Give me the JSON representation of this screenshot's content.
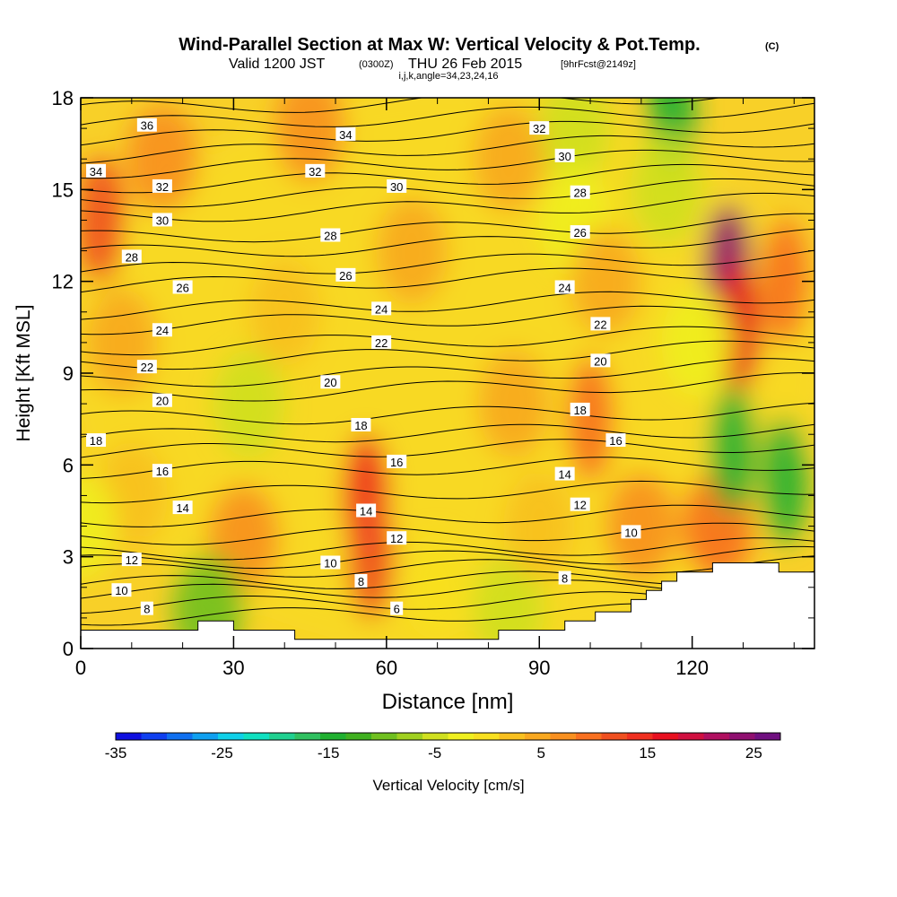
{
  "header": {
    "title": "Wind-Parallel Section at Max W: Vertical Velocity & Pot.Temp.",
    "copyright": "(C)",
    "valid_prefix": "Valid 1200 JST",
    "valid_utc": "(0300Z)",
    "valid_date": "THU 26 Feb 2015",
    "forecast": "[9hrFcst@2149z]",
    "params": "i,j,k,angle=34,23,24,16"
  },
  "chart_data": {
    "type": "heatmap",
    "title": "Wind-Parallel Section at Max W: Vertical Velocity & Pot.Temp.",
    "xlabel": "Distance [nm]",
    "ylabel": "Height [Kft MSL]",
    "xlim": [
      0,
      144
    ],
    "ylim": [
      0,
      18
    ],
    "x_ticks": [
      0,
      30,
      60,
      90,
      120
    ],
    "y_ticks": [
      0,
      3,
      6,
      9,
      12,
      15,
      18
    ],
    "colorbar": {
      "label": "Vertical Velocity [cm/s]",
      "min": -35,
      "max": 27.5,
      "step": 2.5,
      "tick_values": [
        -35,
        -25,
        -15,
        -5,
        5,
        15,
        25
      ],
      "colors": [
        "#1010e0",
        "#1040f0",
        "#1070f0",
        "#10a0f0",
        "#10d0e8",
        "#10e0c0",
        "#20d090",
        "#30c060",
        "#20b030",
        "#40b020",
        "#70c020",
        "#a0d020",
        "#d0e020",
        "#f0f020",
        "#f8e020",
        "#f8c020",
        "#f8a820",
        "#f89020",
        "#f87020",
        "#f05020",
        "#f03020",
        "#e81020",
        "#d01040",
        "#b01060",
        "#901070",
        "#701080"
      ]
    },
    "velocity_cells": [
      {
        "x": 72,
        "y": 9,
        "w": 0
      },
      {
        "x": 4,
        "y": 14,
        "w": 14
      },
      {
        "x": 8,
        "y": 10,
        "w": 7
      },
      {
        "x": 16,
        "y": 16,
        "w": 9
      },
      {
        "x": 45,
        "y": 17,
        "w": 8
      },
      {
        "x": 65,
        "y": 13,
        "w": 7
      },
      {
        "x": 56,
        "y": 5,
        "w": 15
      },
      {
        "x": 57,
        "y": 3,
        "w": 14
      },
      {
        "x": 32,
        "y": 3.6,
        "w": 8
      },
      {
        "x": 100,
        "y": 7.5,
        "w": 11
      },
      {
        "x": 85,
        "y": 8,
        "w": 6
      },
      {
        "x": 127,
        "y": 12.5,
        "w": 25
      },
      {
        "x": 129,
        "y": 10.5,
        "w": 18
      },
      {
        "x": 138,
        "y": 12,
        "w": 12
      },
      {
        "x": 125,
        "y": 4,
        "w": 10
      },
      {
        "x": 110,
        "y": 4,
        "w": 9
      },
      {
        "x": 97,
        "y": 17,
        "w": -4
      },
      {
        "x": 97,
        "y": 14,
        "w": -2
      },
      {
        "x": 116,
        "y": 17.5,
        "w": -14
      },
      {
        "x": 115,
        "y": 15,
        "w": -5
      },
      {
        "x": 128,
        "y": 6.5,
        "w": -15
      },
      {
        "x": 138,
        "y": 5.5,
        "w": -14
      },
      {
        "x": 121,
        "y": 10,
        "w": -2
      },
      {
        "x": 33,
        "y": 8,
        "w": -3
      },
      {
        "x": 25,
        "y": 1.3,
        "w": -8
      },
      {
        "x": 84,
        "y": 1.3,
        "w": -3
      },
      {
        "x": 70,
        "y": 2,
        "w": 2
      },
      {
        "x": 90,
        "y": 4,
        "w": 3
      },
      {
        "x": 10,
        "y": 5,
        "w": 4
      },
      {
        "x": 40,
        "y": 11,
        "w": 4
      },
      {
        "x": 103,
        "y": 12,
        "w": 7
      },
      {
        "x": 84,
        "y": 16,
        "w": 6
      },
      {
        "x": 0,
        "y": 4,
        "w": -2
      }
    ],
    "isentropes": [
      {
        "value": 6,
        "y": 1.0,
        "label_x": 62
      },
      {
        "value": 7,
        "y": 1.4,
        "label_x": 0
      },
      {
        "value": 8,
        "y": 1.8,
        "label_x": 13
      },
      {
        "value": 9,
        "y": 2.1,
        "label_x": 0
      },
      {
        "value": 10,
        "y": 2.5,
        "label_x": 8
      },
      {
        "value": 11,
        "y": 2.8,
        "label_x": 0
      },
      {
        "value": 12,
        "y": 3.1,
        "label_x": 10
      },
      {
        "value": 13,
        "y": 3.6,
        "label_x": 0
      },
      {
        "value": 14,
        "y": 4.2,
        "label_x": 20
      },
      {
        "value": 15,
        "y": 5.0,
        "label_x": 0
      },
      {
        "value": 16,
        "y": 5.8,
        "label_x": 16
      },
      {
        "value": 17,
        "y": 6.4,
        "label_x": 0
      },
      {
        "value": 18,
        "y": 6.9,
        "label_x": 3
      },
      {
        "value": 19,
        "y": 7.5,
        "label_x": 0
      },
      {
        "value": 20,
        "y": 8.2,
        "label_x": 16
      },
      {
        "value": 21,
        "y": 8.7,
        "label_x": 0
      },
      {
        "value": 22,
        "y": 9.3,
        "label_x": 13
      },
      {
        "value": 23,
        "y": 9.8,
        "label_x": 0
      },
      {
        "value": 24,
        "y": 10.5,
        "label_x": 16
      },
      {
        "value": 25,
        "y": 11.0,
        "label_x": 0
      },
      {
        "value": 26,
        "y": 11.8,
        "label_x": 19
      },
      {
        "value": 27,
        "y": 12.3,
        "label_x": 0
      },
      {
        "value": 28,
        "y": 12.9,
        "label_x": 9
      },
      {
        "value": 29,
        "y": 13.4,
        "label_x": 0
      },
      {
        "value": 30,
        "y": 14.1,
        "label_x": 16
      },
      {
        "value": 31,
        "y": 14.6,
        "label_x": 0
      },
      {
        "value": 32,
        "y": 15.1,
        "label_x": 16
      },
      {
        "value": 33,
        "y": 15.6,
        "label_x": 0
      },
      {
        "value": 34,
        "y": 16.1,
        "label_x": 0
      },
      {
        "value": 35,
        "y": 16.6,
        "label_x": 0
      },
      {
        "value": 36,
        "y": 17.1,
        "label_x": 13
      },
      {
        "value": 37,
        "y": 17.6,
        "label_x": 0
      }
    ],
    "contour_labels": [
      {
        "text": "36",
        "x": 13,
        "y": 17.1
      },
      {
        "text": "34",
        "x": 3,
        "y": 15.6
      },
      {
        "text": "34",
        "x": 52,
        "y": 16.8
      },
      {
        "text": "32",
        "x": 16,
        "y": 15.1
      },
      {
        "text": "32",
        "x": 46,
        "y": 15.6
      },
      {
        "text": "32",
        "x": 90,
        "y": 17.0
      },
      {
        "text": "30",
        "x": 16,
        "y": 14.0
      },
      {
        "text": "30",
        "x": 62,
        "y": 15.1
      },
      {
        "text": "30",
        "x": 95,
        "y": 16.1
      },
      {
        "text": "28",
        "x": 10,
        "y": 12.8
      },
      {
        "text": "28",
        "x": 49,
        "y": 13.5
      },
      {
        "text": "28",
        "x": 98,
        "y": 14.9
      },
      {
        "text": "26",
        "x": 20,
        "y": 11.8
      },
      {
        "text": "26",
        "x": 52,
        "y": 12.2
      },
      {
        "text": "26",
        "x": 98,
        "y": 13.6
      },
      {
        "text": "24",
        "x": 16,
        "y": 10.4
      },
      {
        "text": "24",
        "x": 59,
        "y": 11.1
      },
      {
        "text": "24",
        "x": 95,
        "y": 11.8
      },
      {
        "text": "22",
        "x": 13,
        "y": 9.2
      },
      {
        "text": "22",
        "x": 59,
        "y": 10.0
      },
      {
        "text": "22",
        "x": 102,
        "y": 10.6
      },
      {
        "text": "20",
        "x": 16,
        "y": 8.1
      },
      {
        "text": "20",
        "x": 49,
        "y": 8.7
      },
      {
        "text": "20",
        "x": 102,
        "y": 9.4
      },
      {
        "text": "18",
        "x": 3,
        "y": 6.8
      },
      {
        "text": "18",
        "x": 55,
        "y": 7.3
      },
      {
        "text": "18",
        "x": 98,
        "y": 7.8
      },
      {
        "text": "16",
        "x": 16,
        "y": 5.8
      },
      {
        "text": "16",
        "x": 62,
        "y": 6.1
      },
      {
        "text": "16",
        "x": 105,
        "y": 6.8
      },
      {
        "text": "14",
        "x": 20,
        "y": 4.6
      },
      {
        "text": "14",
        "x": 56,
        "y": 4.5
      },
      {
        "text": "14",
        "x": 95,
        "y": 5.7
      },
      {
        "text": "12",
        "x": 10,
        "y": 2.9
      },
      {
        "text": "12",
        "x": 62,
        "y": 3.6
      },
      {
        "text": "12",
        "x": 98,
        "y": 4.7
      },
      {
        "text": "10",
        "x": 8,
        "y": 1.9
      },
      {
        "text": "10",
        "x": 49,
        "y": 2.8
      },
      {
        "text": "10",
        "x": 108,
        "y": 3.8
      },
      {
        "text": "8",
        "x": 13,
        "y": 1.3
      },
      {
        "text": "8",
        "x": 55,
        "y": 2.2
      },
      {
        "text": "8",
        "x": 95,
        "y": 2.3
      },
      {
        "text": "6",
        "x": 62,
        "y": 1.3
      }
    ],
    "terrain": [
      [
        0,
        0.6
      ],
      [
        23,
        0.6
      ],
      [
        23,
        0.9
      ],
      [
        30,
        0.9
      ],
      [
        30,
        0.6
      ],
      [
        42,
        0.6
      ],
      [
        42,
        0.3
      ],
      [
        82,
        0.3
      ],
      [
        82,
        0.6
      ],
      [
        95,
        0.6
      ],
      [
        95,
        0.9
      ],
      [
        101,
        0.9
      ],
      [
        101,
        1.2
      ],
      [
        108,
        1.2
      ],
      [
        108,
        1.6
      ],
      [
        111,
        1.6
      ],
      [
        111,
        1.9
      ],
      [
        114,
        1.9
      ],
      [
        114,
        2.2
      ],
      [
        117,
        2.2
      ],
      [
        117,
        2.5
      ],
      [
        124,
        2.5
      ],
      [
        124,
        2.8
      ],
      [
        137,
        2.8
      ],
      [
        137,
        2.5
      ],
      [
        144,
        2.5
      ]
    ]
  }
}
